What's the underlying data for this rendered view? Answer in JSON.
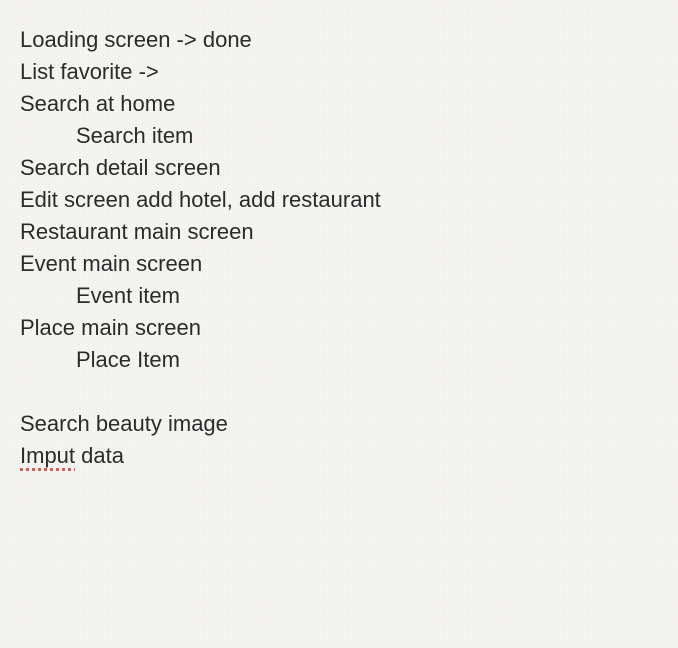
{
  "note": {
    "lines": [
      "Loading screen -> done",
      "List favorite ->",
      "Search at home",
      "Search item",
      "Search detail screen",
      "Edit screen add hotel, add restaurant",
      "Restaurant main screen",
      "Event main screen",
      "Event item",
      "Place main screen",
      "Place Item",
      "",
      "Search beauty image"
    ],
    "last_line_misspelled": "Imput",
    "last_line_rest": " data"
  },
  "colors": {
    "background": "#f6f5f2",
    "text": "#2b2b2b",
    "spellcheck": "#e05a4f"
  }
}
